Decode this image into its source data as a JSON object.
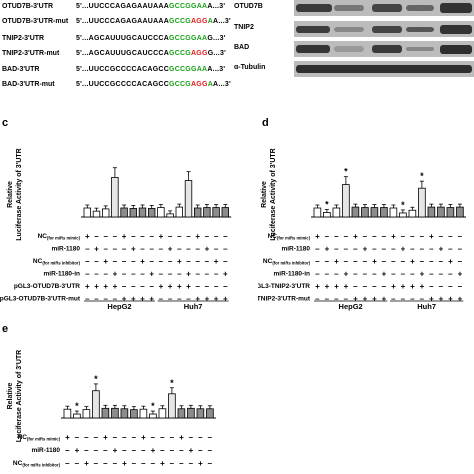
{
  "sequences": [
    {
      "label": "OTUD7B-3'UTR",
      "prefix": "5'...UUCCCAGAGAAUAAA",
      "green1": "GCCGGAA",
      "red": "",
      "green2": "",
      "suffix": "A...3'"
    },
    {
      "label": "OTUD7B-3'UTR-mut",
      "prefix": "5'...UUCCCAGAGAAUAAA",
      "green1": "GCCG",
      "red": "AGG",
      "green2": "A",
      "suffix": "A...3'"
    },
    {
      "label": "TNIP2-3'UTR",
      "prefix": "5'...AGCAUUUGCAUCCCA",
      "green1": "GCCGGAA",
      "red": "",
      "green2": "",
      "suffix": "G...3'"
    },
    {
      "label": "TNIP2-3'UTR-mut",
      "prefix": "5'...AGCAUUUGCAUCCCA",
      "green1": "GCCG",
      "red": "AGG",
      "green2": "",
      "suffix": "G...3'"
    },
    {
      "label": "BAD-3'UTR",
      "prefix": "5'...UUCCGCCCCACAGCC",
      "green1": "GCCGGAA",
      "red": "",
      "green2": "",
      "suffix": "A...3'"
    },
    {
      "label": "BAD-3'UTR-mut",
      "prefix": "5'...UUCCGCCCCACAGCC",
      "green1": "GCCG",
      "red": "AGG",
      "green2": "A",
      "suffix": "A...3'"
    }
  ],
  "blot": {
    "labels": [
      "OTUD7B",
      "TNIP2",
      "BAD",
      "α-Tubulin"
    ]
  },
  "colors": {
    "seq_green": "#1aa31a",
    "seq_red": "#e01b1b",
    "bar_light": "#ffffff",
    "bar_mid": "#e6e6e6",
    "bar_dark": "#8c8c8c"
  },
  "chart_data": [
    {
      "panel": "c",
      "type": "bar",
      "ylabel_line1": "Relative",
      "ylabel_line2": "Luciferase Activity of 3'UTR",
      "groups": [
        "HepG2",
        "Huh7"
      ],
      "values": [
        1.0,
        0.65,
        0.9,
        4.4,
        1.0,
        0.95,
        1.0,
        0.95,
        1.05,
        0.35,
        1.1,
        4.05,
        1.0,
        1.05,
        1.05,
        1.05
      ],
      "stars": [],
      "rows": [
        {
          "label": "NC",
          "sub": "(for miRs mimic)",
          "signs": [
            "+",
            "-",
            "-",
            "-",
            "+",
            "-",
            "-",
            "-",
            "+",
            "-",
            "-",
            "-",
            "+",
            "-",
            "-",
            "-"
          ]
        },
        {
          "label": "miR-1180",
          "sub": "",
          "signs": [
            "-",
            "+",
            "-",
            "-",
            "-",
            "+",
            "-",
            "-",
            "-",
            "+",
            "-",
            "-",
            "-",
            "+",
            "-",
            "-"
          ]
        },
        {
          "label": "NC",
          "sub": "(for miRs inhibitor)",
          "signs": [
            "-",
            "-",
            "+",
            "-",
            "-",
            "-",
            "+",
            "-",
            "-",
            "-",
            "+",
            "-",
            "-",
            "-",
            "+",
            "-"
          ]
        },
        {
          "label": "miR-1180-in",
          "sub": "",
          "signs": [
            "-",
            "-",
            "-",
            "+",
            "-",
            "-",
            "-",
            "+",
            "-",
            "-",
            "-",
            "+",
            "-",
            "-",
            "-",
            "+"
          ]
        },
        {
          "label": "pGL3-OTUD7B-3'UTR",
          "sub": "",
          "signs": [
            "+",
            "+",
            "+",
            "+",
            "-",
            "-",
            "-",
            "-",
            "+",
            "+",
            "+",
            "+",
            "-",
            "-",
            "-",
            "-"
          ]
        },
        {
          "label": "pGL3-OTUD7B-3'UTR-mut",
          "sub": "",
          "signs": [
            "-",
            "-",
            "-",
            "-",
            "+",
            "+",
            "+",
            "+",
            "-",
            "-",
            "-",
            "-",
            "+",
            "+",
            "+",
            "+"
          ]
        }
      ]
    },
    {
      "panel": "d",
      "type": "bar",
      "ylabel_line1": "Relative",
      "ylabel_line2": "Luciferase Activity of 3'UTR",
      "groups": [
        "HepG2",
        "Huh7"
      ],
      "values": [
        1.0,
        0.5,
        1.0,
        3.6,
        1.1,
        1.05,
        1.05,
        1.05,
        1.0,
        0.45,
        0.75,
        3.2,
        1.1,
        1.1,
        1.05,
        1.1
      ],
      "stars": [
        1,
        3,
        9,
        11
      ],
      "rows": [
        {
          "label": "NC",
          "sub": "(for miRs mimic)",
          "signs": [
            "+",
            "-",
            "-",
            "-",
            "+",
            "-",
            "-",
            "-",
            "+",
            "-",
            "-",
            "-",
            "+",
            "-",
            "-",
            "-"
          ]
        },
        {
          "label": "miR-1180",
          "sub": "",
          "signs": [
            "-",
            "+",
            "-",
            "-",
            "-",
            "+",
            "-",
            "-",
            "-",
            "+",
            "-",
            "-",
            "-",
            "+",
            "-",
            "-"
          ]
        },
        {
          "label": "NC",
          "sub": "(for miRs inhibitor)",
          "signs": [
            "-",
            "-",
            "+",
            "-",
            "-",
            "-",
            "+",
            "-",
            "-",
            "-",
            "+",
            "-",
            "-",
            "-",
            "+",
            "-"
          ]
        },
        {
          "label": "miR-1180-in",
          "sub": "",
          "signs": [
            "-",
            "-",
            "-",
            "+",
            "-",
            "-",
            "-",
            "+",
            "-",
            "-",
            "-",
            "+",
            "-",
            "-",
            "-",
            "+"
          ]
        },
        {
          "label": "pGL3-TNIP2-3'UTR",
          "sub": "",
          "signs": [
            "+",
            "+",
            "+",
            "+",
            "-",
            "-",
            "-",
            "-",
            "+",
            "+",
            "+",
            "+",
            "-",
            "-",
            "-",
            "-"
          ]
        },
        {
          "label": "pGL3-TNIP2-3'UTR-mut",
          "sub": "",
          "signs": [
            "-",
            "-",
            "-",
            "-",
            "+",
            "+",
            "+",
            "+",
            "-",
            "-",
            "-",
            "-",
            "+",
            "+",
            "+",
            "+"
          ]
        }
      ]
    },
    {
      "panel": "e",
      "type": "bar",
      "ylabel_line1": "Relative",
      "ylabel_line2": "Luciferase Activity of 3'UTR",
      "groups": [],
      "values": [
        1.0,
        0.45,
        0.95,
        3.1,
        1.1,
        1.1,
        1.05,
        0.95,
        1.0,
        0.45,
        1.05,
        2.75,
        1.05,
        1.1,
        1.05,
        1.05
      ],
      "stars": [
        1,
        3,
        9,
        11
      ],
      "rows": [
        {
          "label": "NC",
          "sub": "(for miRs mimic)",
          "signs": [
            "+",
            "-",
            "-",
            "-",
            "+",
            "-",
            "-",
            "-",
            "+",
            "-",
            "-",
            "-",
            "+",
            "-",
            "-",
            "-"
          ]
        },
        {
          "label": "miR-1180",
          "sub": "",
          "signs": [
            "-",
            "+",
            "-",
            "-",
            "-",
            "+",
            "-",
            "-",
            "-",
            "+",
            "-",
            "-",
            "-",
            "+",
            "-",
            "-"
          ]
        },
        {
          "label": "NC",
          "sub": "(for miRs inhibitor)",
          "signs": [
            "-",
            "-",
            "+",
            "-",
            "-",
            "-",
            "+",
            "-",
            "-",
            "-",
            "+",
            "-",
            "-",
            "-",
            "+",
            "-"
          ]
        }
      ]
    }
  ]
}
